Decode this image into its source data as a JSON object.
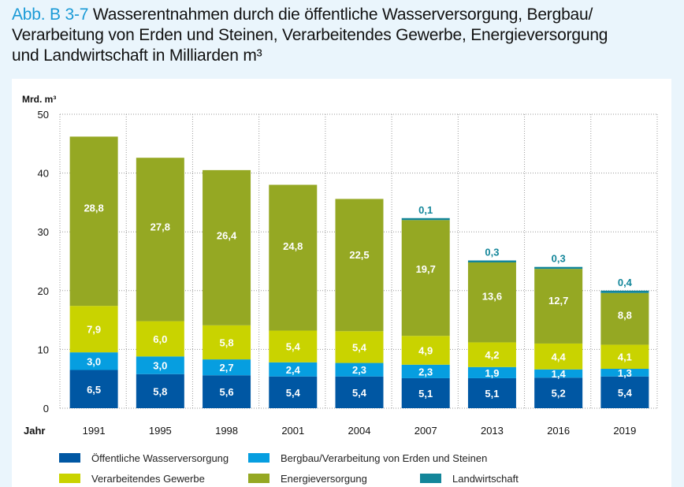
{
  "title": {
    "prefix": "Abb. B 3-7",
    "line1": " Wasserentnahmen durch die öffentliche Wasserversorgung, Bergbau/",
    "line2": "Verarbeitung von Erden und Steinen, Verarbeitendes Gewerbe, Energieversorgung",
    "line3": "und Landwirtschaft in Milliarden m³"
  },
  "chart_data": {
    "type": "bar",
    "stacked": true,
    "title": "Wasserentnahmen durch die öffentliche Wasserversorgung, Bergbau/Verarbeitung von Erden und Steinen, Verarbeitendes Gewerbe, Energieversorgung und Landwirtschaft in Milliarden m³",
    "xlabel": "Jahr",
    "ylabel": "Mrd. m³",
    "ylim": [
      0,
      50
    ],
    "yticks": [
      "0",
      "10",
      "20",
      "30",
      "40",
      "50"
    ],
    "ytick_values": [
      0,
      10,
      20,
      30,
      40,
      50
    ],
    "grid": true,
    "legend_position": "bottom",
    "categories": [
      "1991",
      "1995",
      "1998",
      "2001",
      "2004",
      "2007",
      "2013",
      "2016",
      "2019"
    ],
    "series": [
      {
        "name": "Öffentliche Wasserversorgung",
        "color": "#0057a3",
        "label_color": "#ffffff",
        "values": [
          6.5,
          5.8,
          5.6,
          5.4,
          5.4,
          5.1,
          5.1,
          5.2,
          5.4
        ],
        "labels": [
          "6,5",
          "5,8",
          "5,6",
          "5,4",
          "5,4",
          "5,1",
          "5,1",
          "5,2",
          "5,4"
        ]
      },
      {
        "name": "Bergbau/Verarbeitung von Erden und Steinen",
        "color": "#069ee0",
        "label_color": "#ffffff",
        "values": [
          3.0,
          3.0,
          2.7,
          2.4,
          2.3,
          2.3,
          1.9,
          1.4,
          1.3
        ],
        "labels": [
          "3,0",
          "3,0",
          "2,7",
          "2,4",
          "2,3",
          "2,3",
          "1,9",
          "1,4",
          "1,3"
        ]
      },
      {
        "name": "Verarbeitendes Gewerbe",
        "color": "#c9d300",
        "label_color": "#ffffff",
        "values": [
          7.9,
          6.0,
          5.8,
          5.4,
          5.4,
          4.9,
          4.2,
          4.4,
          4.1
        ],
        "labels": [
          "7,9",
          "6,0",
          "5,8",
          "5,4",
          "5,4",
          "4,9",
          "4,2",
          "4,4",
          "4,1"
        ]
      },
      {
        "name": "Energieversorgung",
        "color": "#95a823",
        "label_color": "#ffffff",
        "values": [
          28.8,
          27.8,
          26.4,
          24.8,
          22.5,
          19.7,
          13.6,
          12.7,
          8.8
        ],
        "labels": [
          "28,8",
          "27,8",
          "26,4",
          "24,8",
          "22,5",
          "19,7",
          "13,6",
          "12,7",
          "8,8"
        ]
      },
      {
        "name": "Landwirtschaft",
        "color": "#13869a",
        "label_color": "#13869a",
        "values": [
          0,
          0,
          0,
          0,
          0,
          0.1,
          0.3,
          0.3,
          0.4
        ],
        "labels": [
          "",
          "",
          "",
          "",
          "",
          "0,1",
          "0,3",
          "0,3",
          "0,4"
        ]
      }
    ]
  },
  "legend": {
    "items": [
      {
        "label": "Öffentliche Wasserversorgung",
        "color": "#0057a3"
      },
      {
        "label": "Bergbau/Verarbeitung von Erden und Steinen",
        "color": "#069ee0"
      },
      {
        "label": "Verarbeitendes Gewerbe",
        "color": "#c9d300"
      },
      {
        "label": "Energieversorgung",
        "color": "#95a823"
      },
      {
        "label": "Landwirtschaft",
        "color": "#13869a"
      }
    ]
  }
}
